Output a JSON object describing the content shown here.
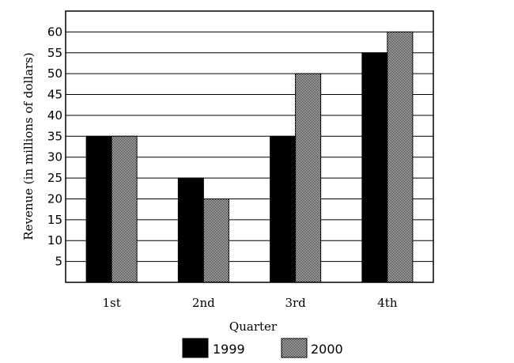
{
  "chart_data": {
    "type": "bar",
    "title": "",
    "xlabel": "Quarter",
    "ylabel": "Revenue (in millions of dollars)",
    "categories": [
      "1st",
      "2nd",
      "3rd",
      "4th"
    ],
    "series": [
      {
        "name": "1999",
        "values": [
          35,
          25,
          35,
          55
        ],
        "color": "#000000",
        "pattern": "solid"
      },
      {
        "name": "2000",
        "values": [
          35,
          20,
          50,
          60
        ],
        "color": "#bfbfbf",
        "pattern": "dotted"
      }
    ],
    "ylim": [
      0,
      65
    ],
    "yticks": [
      5,
      10,
      15,
      20,
      25,
      30,
      35,
      40,
      45,
      50,
      55,
      60
    ],
    "grid": true,
    "legend_position": "bottom-center"
  }
}
